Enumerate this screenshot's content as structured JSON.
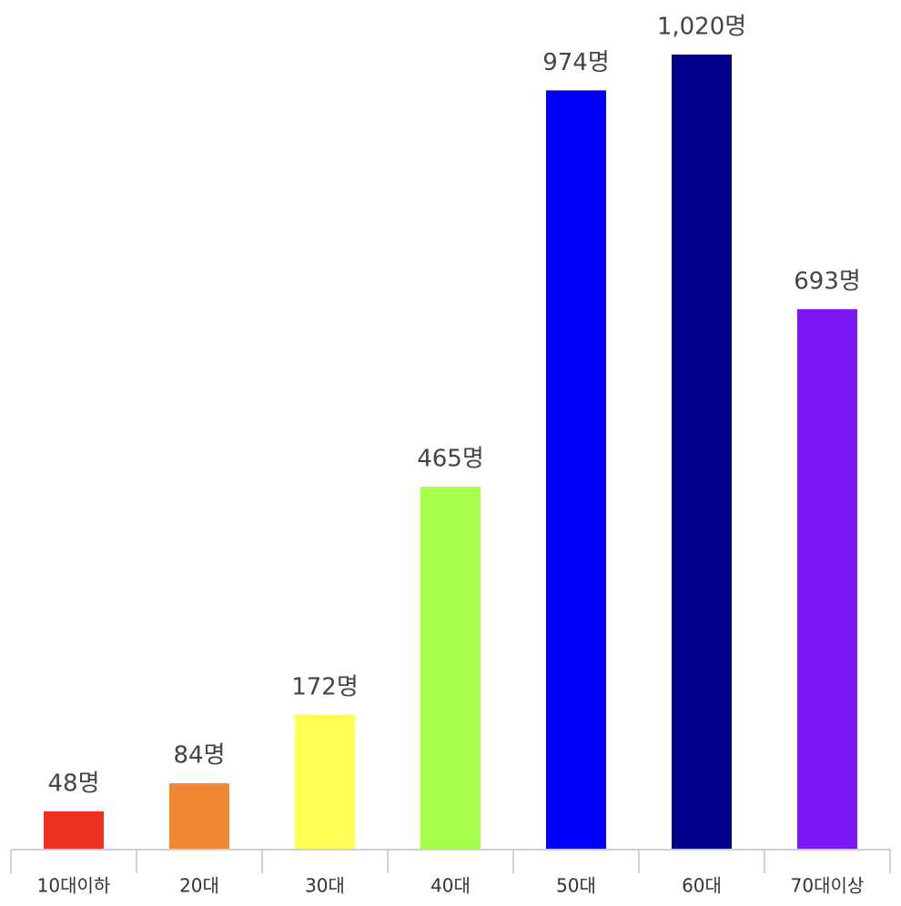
{
  "chart_data": {
    "type": "bar",
    "categories": [
      "10대이하",
      "20대",
      "30대",
      "40대",
      "50대",
      "60대",
      "70대이상"
    ],
    "values": [
      48,
      84,
      172,
      465,
      974,
      1020,
      693
    ],
    "value_labels": [
      "48명",
      "84명",
      "172명",
      "465명",
      "974명",
      "1,020명",
      "693명"
    ],
    "colors": [
      "#ee3322",
      "#f08833",
      "#ffff55",
      "#a6ff4d",
      "#0000ff",
      "#00008b",
      "#7b18f5"
    ]
  }
}
